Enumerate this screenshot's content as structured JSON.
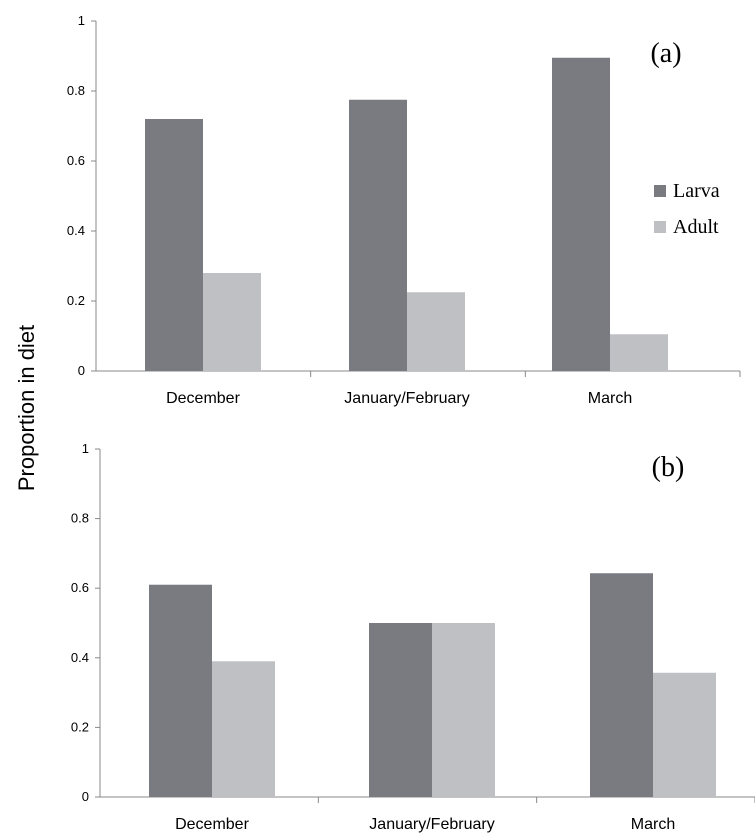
{
  "ylabel": "Proportion in diet",
  "legend": [
    {
      "name": "Larva",
      "color": "#7a7b80"
    },
    {
      "name": "Adult",
      "color": "#bfc0c4"
    }
  ],
  "chart_data": [
    {
      "type": "bar",
      "panel": "(a)",
      "categories": [
        "December",
        "January/February",
        "March"
      ],
      "series": [
        {
          "name": "Larva",
          "values": [
            0.72,
            0.775,
            0.895
          ]
        },
        {
          "name": "Adult",
          "values": [
            0.28,
            0.225,
            0.105
          ]
        }
      ],
      "ylim": [
        0,
        1
      ],
      "yticks": [
        "0",
        "0.2",
        "0.4",
        "0.6",
        "0.8",
        "1"
      ],
      "legend_position": "right"
    },
    {
      "type": "bar",
      "panel": "(b)",
      "categories": [
        "December",
        "January/February",
        "March"
      ],
      "series": [
        {
          "name": "Larva",
          "values": [
            0.61,
            0.5,
            0.643
          ]
        },
        {
          "name": "Adult",
          "values": [
            0.39,
            0.5,
            0.357
          ]
        }
      ],
      "ylim": [
        0,
        1
      ],
      "yticks": [
        "0",
        "0.2",
        "0.4",
        "0.6",
        "0.8",
        "1"
      ]
    }
  ]
}
